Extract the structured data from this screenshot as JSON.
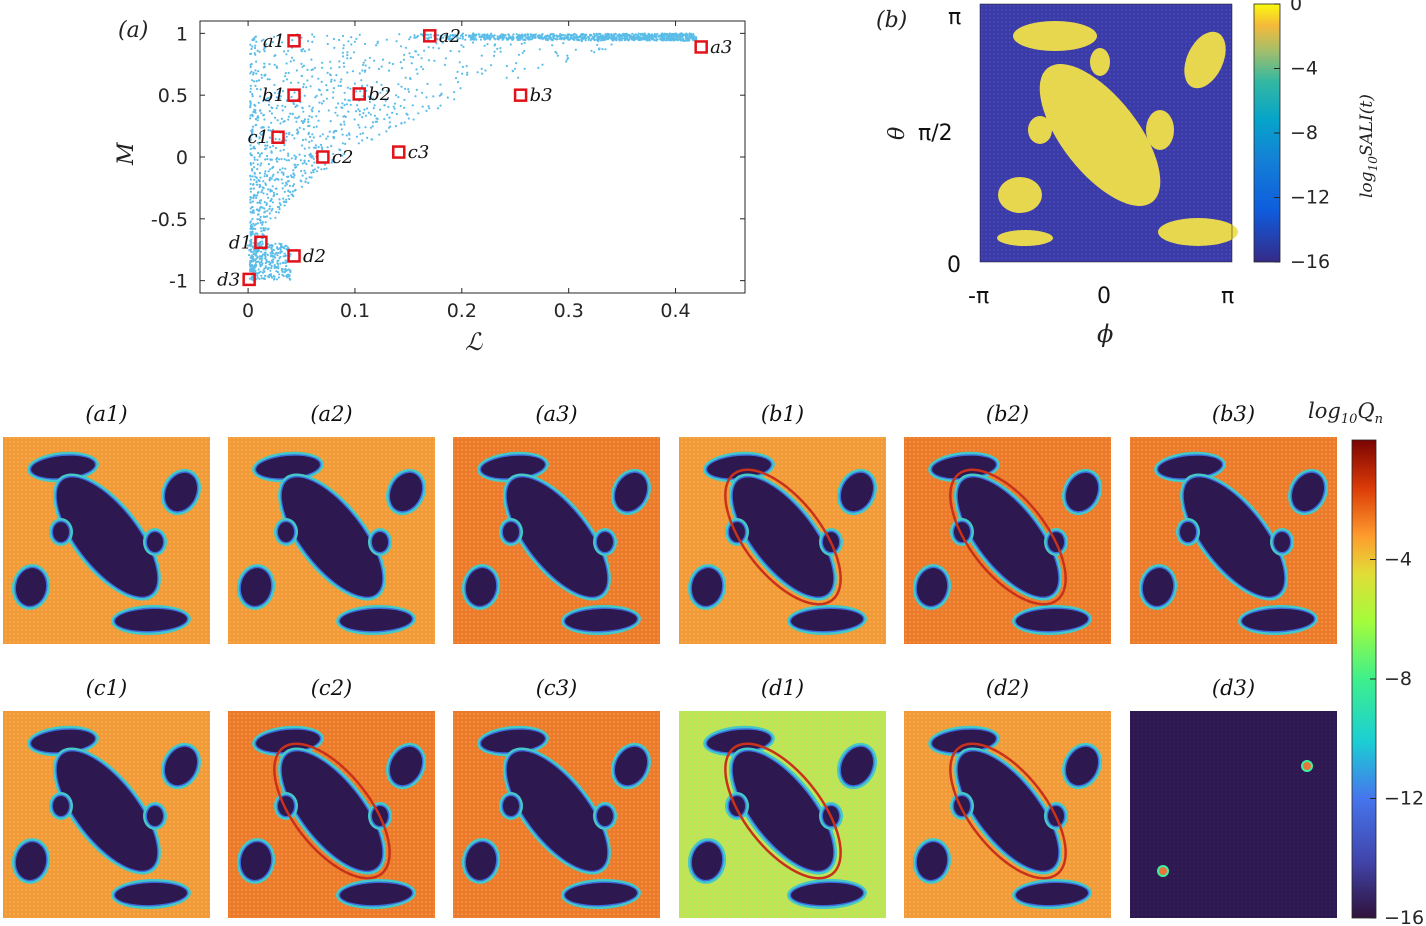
{
  "chart_data": [
    {
      "panel": "(a)",
      "type": "scatter",
      "xlabel": "ℒ",
      "ylabel": "M",
      "xlim": [
        -0.045,
        0.465
      ],
      "ylim": [
        -1.1,
        1.1
      ],
      "xticks": [
        "0",
        "0.1",
        "0.2",
        "0.3",
        "0.4"
      ],
      "xtick_values": [
        0,
        0.1,
        0.2,
        0.3,
        0.4
      ],
      "yticks": [
        "1",
        "0.5",
        "0",
        "-0.5",
        "-1"
      ],
      "ytick_values": [
        1,
        0.5,
        0,
        -0.5,
        -1
      ],
      "point_color": "#5bbde8",
      "marker_color": "#e3121a",
      "highlighted_points": [
        {
          "label": "a1",
          "x": 0.043,
          "y": 0.94,
          "label_side": "left"
        },
        {
          "label": "a2",
          "x": 0.17,
          "y": 0.98,
          "label_side": "right"
        },
        {
          "label": "a3",
          "x": 0.424,
          "y": 0.89,
          "label_side": "right"
        },
        {
          "label": "b1",
          "x": 0.043,
          "y": 0.5,
          "label_side": "left"
        },
        {
          "label": "b2",
          "x": 0.104,
          "y": 0.51,
          "label_side": "right"
        },
        {
          "label": "b3",
          "x": 0.255,
          "y": 0.5,
          "label_side": "right"
        },
        {
          "label": "c1",
          "x": 0.028,
          "y": 0.16,
          "label_side": "left"
        },
        {
          "label": "c2",
          "x": 0.07,
          "y": 0.0,
          "label_side": "right"
        },
        {
          "label": "c3",
          "x": 0.141,
          "y": 0.04,
          "label_side": "right"
        },
        {
          "label": "d1",
          "x": 0.012,
          "y": -0.69,
          "label_side": "left"
        },
        {
          "label": "d2",
          "x": 0.043,
          "y": -0.8,
          "label_side": "right"
        },
        {
          "label": "d3",
          "x": 0.001,
          "y": -0.99,
          "label_side": "left"
        }
      ]
    },
    {
      "panel": "(b)",
      "type": "heatmap",
      "xlabel": "ϕ",
      "ylabel": "θ",
      "xticks": [
        "-π",
        "0",
        "π"
      ],
      "yticks": [
        "π",
        "π/2",
        "0"
      ],
      "colorbar_label": "log10SALI(t)",
      "colorbar_ticks": [
        "0",
        "−4",
        "−8",
        "−12",
        "−16"
      ],
      "colorbar_range": [
        -16,
        0
      ],
      "colormap": "parula"
    },
    {
      "type": "heatmap",
      "description": "grid of phase-space maps",
      "titles": [
        "(a1)",
        "(a2)",
        "(a3)",
        "(b1)",
        "(b2)",
        "(b3)",
        "(c1)",
        "(c2)",
        "(c3)",
        "(d1)",
        "(d2)",
        "(d3)"
      ],
      "colorbar_label": "log10Qn",
      "colorbar_ticks": [
        "−4",
        "−8",
        "−12",
        "−16"
      ],
      "colorbar_range": [
        -16,
        0
      ],
      "colormap": "turbo"
    }
  ],
  "text": {
    "panel_a_label": "(a)",
    "panel_b_label": "(b)",
    "a_xlabel": "ℒ",
    "a_ylabel": "M",
    "b_xlabel": "ϕ",
    "b_ylabel": "θ",
    "b_cbar_main": "log",
    "b_cbar_sub": "10",
    "b_cbar_rest": "SALI(t)",
    "q_cbar_main": "log",
    "q_cbar_sub": "10",
    "q_cbar_rest": "Q",
    "q_cbar_sub2": "n"
  }
}
